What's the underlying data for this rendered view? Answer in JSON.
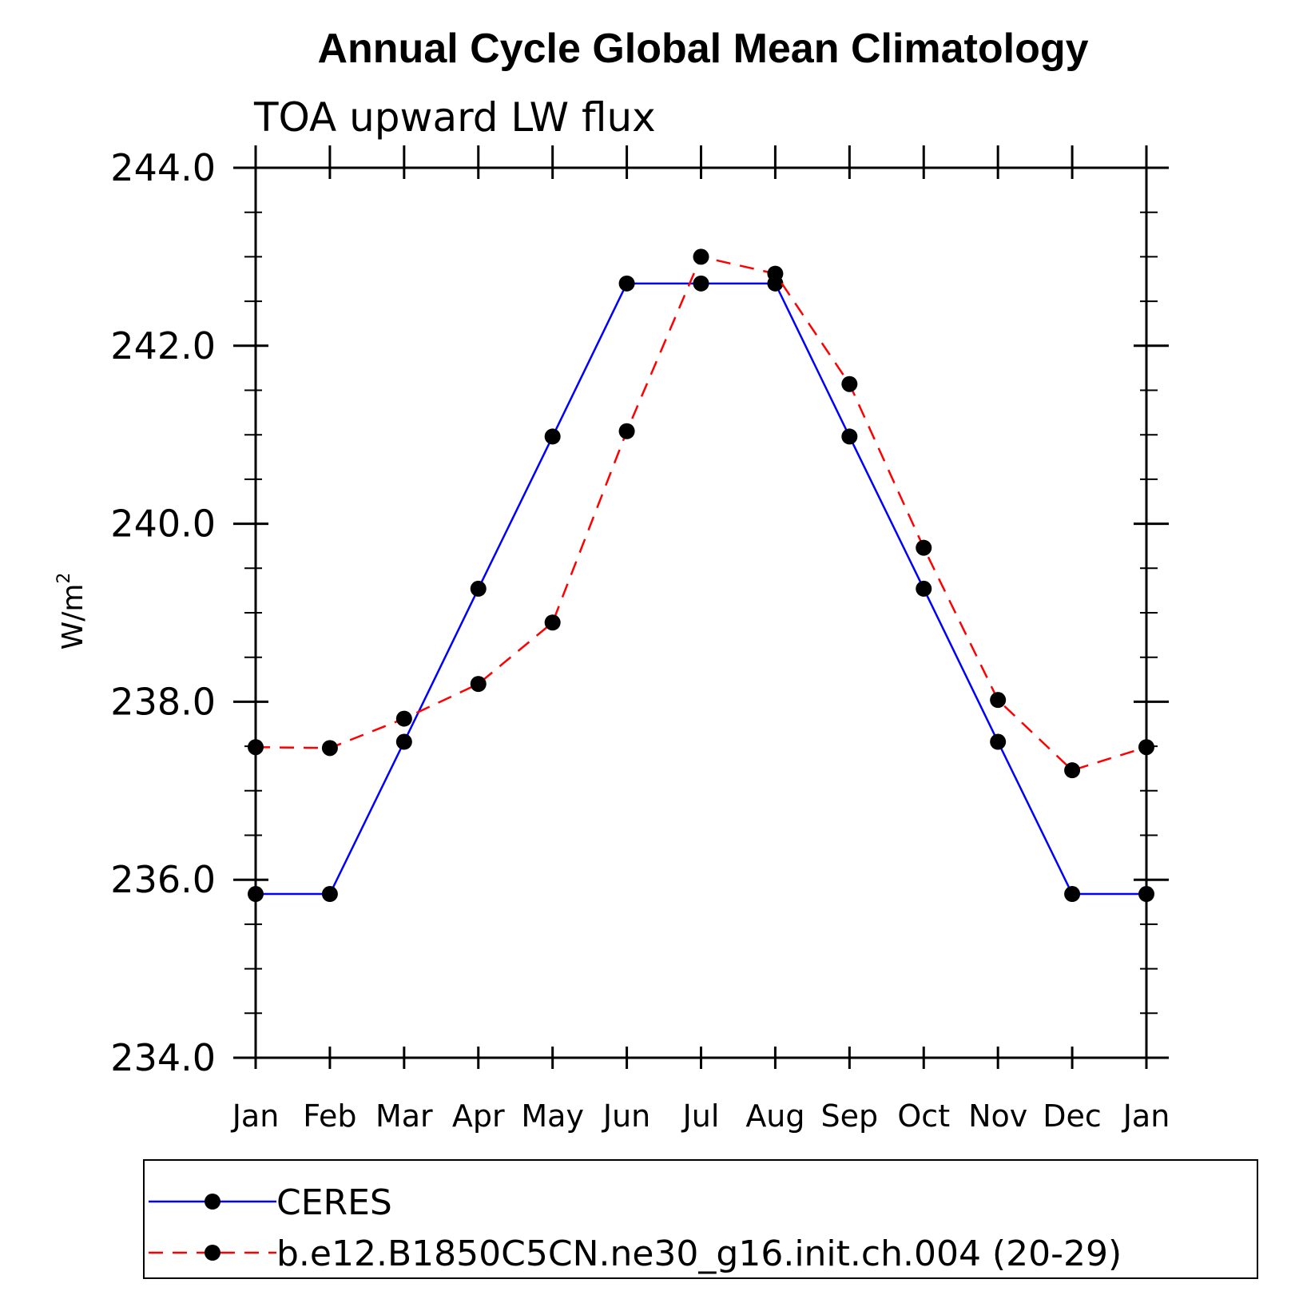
{
  "chart_data": {
    "type": "line",
    "title": "Annual Cycle Global Mean Climatology",
    "subtitle": "TOA upward LW flux",
    "ylabel": "W/m",
    "ylabel_superscript": "2",
    "xlabel": "",
    "categories": [
      "Jan",
      "Feb",
      "Mar",
      "Apr",
      "May",
      "Jun",
      "Jul",
      "Aug",
      "Sep",
      "Oct",
      "Nov",
      "Dec",
      "Jan"
    ],
    "ylim": [
      234.0,
      244.0
    ],
    "yticks": [
      234.0,
      236.0,
      238.0,
      240.0,
      242.0,
      244.0
    ],
    "ytick_labels": [
      "234.0",
      "236.0",
      "238.0",
      "240.0",
      "242.0",
      "244.0"
    ],
    "grid": false,
    "legend_position": "bottom",
    "series": [
      {
        "name": "CERES",
        "color": "#0000ff",
        "line_style": "solid",
        "marker": "circle",
        "values": [
          235.84,
          235.84,
          237.55,
          239.27,
          240.98,
          242.7,
          242.7,
          242.7,
          240.98,
          239.27,
          237.55,
          235.84,
          235.84
        ]
      },
      {
        "name": "b.e12.B1850C5CN.ne30_g16.init.ch.004 (20-29)",
        "color": "#ff0000",
        "line_style": "dashed",
        "marker": "circle",
        "values": [
          237.49,
          237.48,
          237.81,
          238.2,
          238.89,
          241.04,
          243.0,
          242.81,
          241.57,
          239.73,
          238.02,
          237.23,
          237.49
        ]
      }
    ]
  }
}
